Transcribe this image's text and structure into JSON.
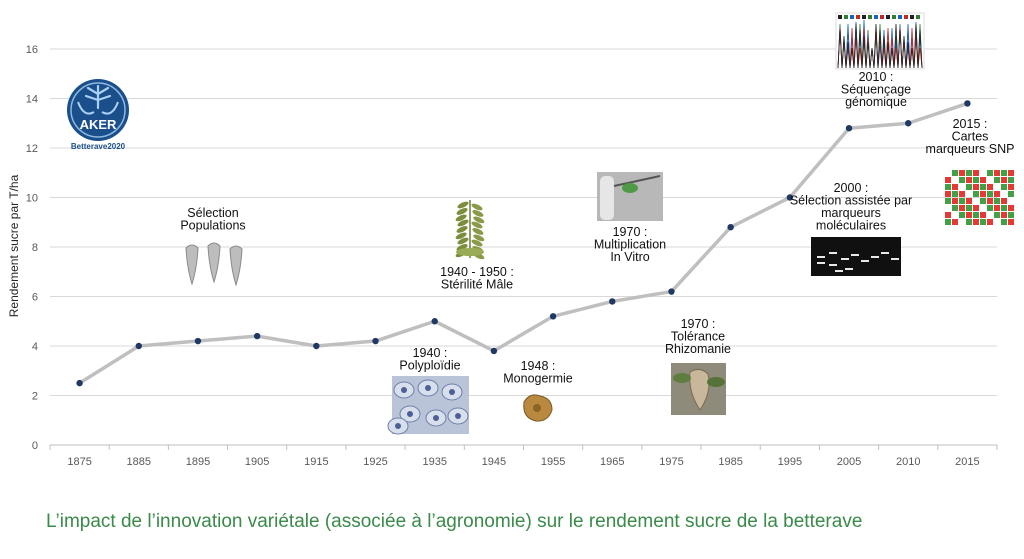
{
  "logo": {
    "name": "AKER",
    "subtitle": "Betterave2020",
    "color": "#1a4f8b"
  },
  "caption": "L’impact de l’innovation variétale (associée à l’agronomie) sur le rendement sucre de la betterave",
  "chart_data": {
    "type": "line",
    "title": "",
    "xlabel": "",
    "ylabel": "Rendement sucre par T/ha",
    "categories": [
      "1875",
      "1885",
      "1895",
      "1905",
      "1915",
      "1925",
      "1935",
      "1945",
      "1955",
      "1965",
      "1975",
      "1985",
      "1995",
      "2005",
      "2010",
      "2015"
    ],
    "ylim": [
      0,
      16
    ],
    "yticks": [
      0,
      2,
      4,
      6,
      8,
      10,
      12,
      14,
      16
    ],
    "grid": true,
    "legend": "none",
    "series": [
      {
        "values": [
          2.5,
          4.0,
          4.2,
          4.4,
          4.0,
          4.2,
          5.0,
          3.8,
          5.2,
          5.8,
          6.2,
          8.8,
          10.0,
          12.8,
          13.0,
          13.8
        ],
        "line_color": "#bfbfbf",
        "marker_color": "#1f3864"
      }
    ],
    "annotations": [
      {
        "lines": [
          "Sélection",
          "Populations"
        ],
        "image": "sugar-beet-roots-drawing"
      },
      {
        "lines": [
          "1940 :",
          "Polyploïdie"
        ],
        "image": "microscope-cells-photo"
      },
      {
        "lines": [
          "1940 - 1950 :",
          "Stérilité Mâle"
        ],
        "image": "beet-plant-illustration"
      },
      {
        "lines": [
          "1948 :",
          "Monogermie"
        ],
        "image": "seed-photo"
      },
      {
        "lines": [
          "1970 :",
          "Multiplication",
          "In Vitro"
        ],
        "image": "in-vitro-plantlet-photo"
      },
      {
        "lines": [
          "1970 :",
          "Tolérance",
          "Rhizomanie"
        ],
        "image": "diseased-root-photo"
      },
      {
        "lines": [
          "2000 :",
          "Sélection assistée par",
          "marqueurs",
          "moléculaires"
        ],
        "image": "gel-electrophoresis-image"
      },
      {
        "lines": [
          "2010 :",
          "Séquençage",
          "génomique"
        ],
        "image": "dna-sequencing-chromatogram"
      },
      {
        "lines": [
          "2015 :",
          "Cartes",
          "marqueurs SNP"
        ],
        "image": "snp-marker-grid"
      }
    ]
  }
}
